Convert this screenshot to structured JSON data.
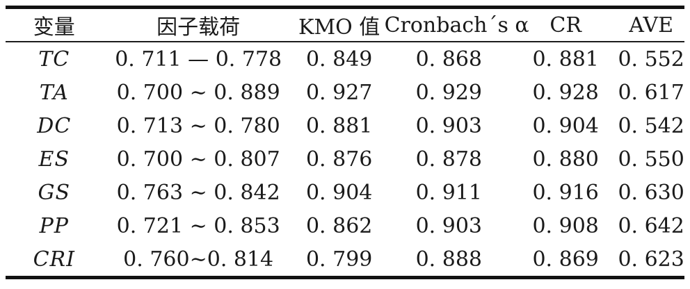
{
  "table": {
    "columns": [
      "变量",
      "因子载荷",
      "KMO 值",
      "Cronbach´s α",
      "CR",
      "AVE"
    ],
    "rows": [
      [
        "TC",
        "0. 711 — 0. 778",
        "0. 849",
        "0. 868",
        "0. 881",
        "0. 552"
      ],
      [
        "TA",
        "0. 700 ∼ 0. 889",
        "0. 927",
        "0. 929",
        "0. 928",
        "0. 617"
      ],
      [
        "DC",
        "0. 713 ∼ 0. 780",
        "0. 881",
        "0. 903",
        "0. 904",
        "0. 542"
      ],
      [
        "ES",
        "0. 700 ∼ 0. 807",
        "0. 876",
        "0. 878",
        "0. 880",
        "0. 550"
      ],
      [
        "GS",
        "0. 763 ∼ 0. 842",
        "0. 904",
        "0. 911",
        "0. 916",
        "0. 630"
      ],
      [
        "PP",
        "0. 721 ∼ 0. 853",
        "0. 862",
        "0. 903",
        "0. 908",
        "0. 642"
      ],
      [
        "CRI",
        "0. 760∼0. 814",
        "0. 799",
        "0. 888",
        "0. 869",
        "0. 623"
      ]
    ]
  }
}
